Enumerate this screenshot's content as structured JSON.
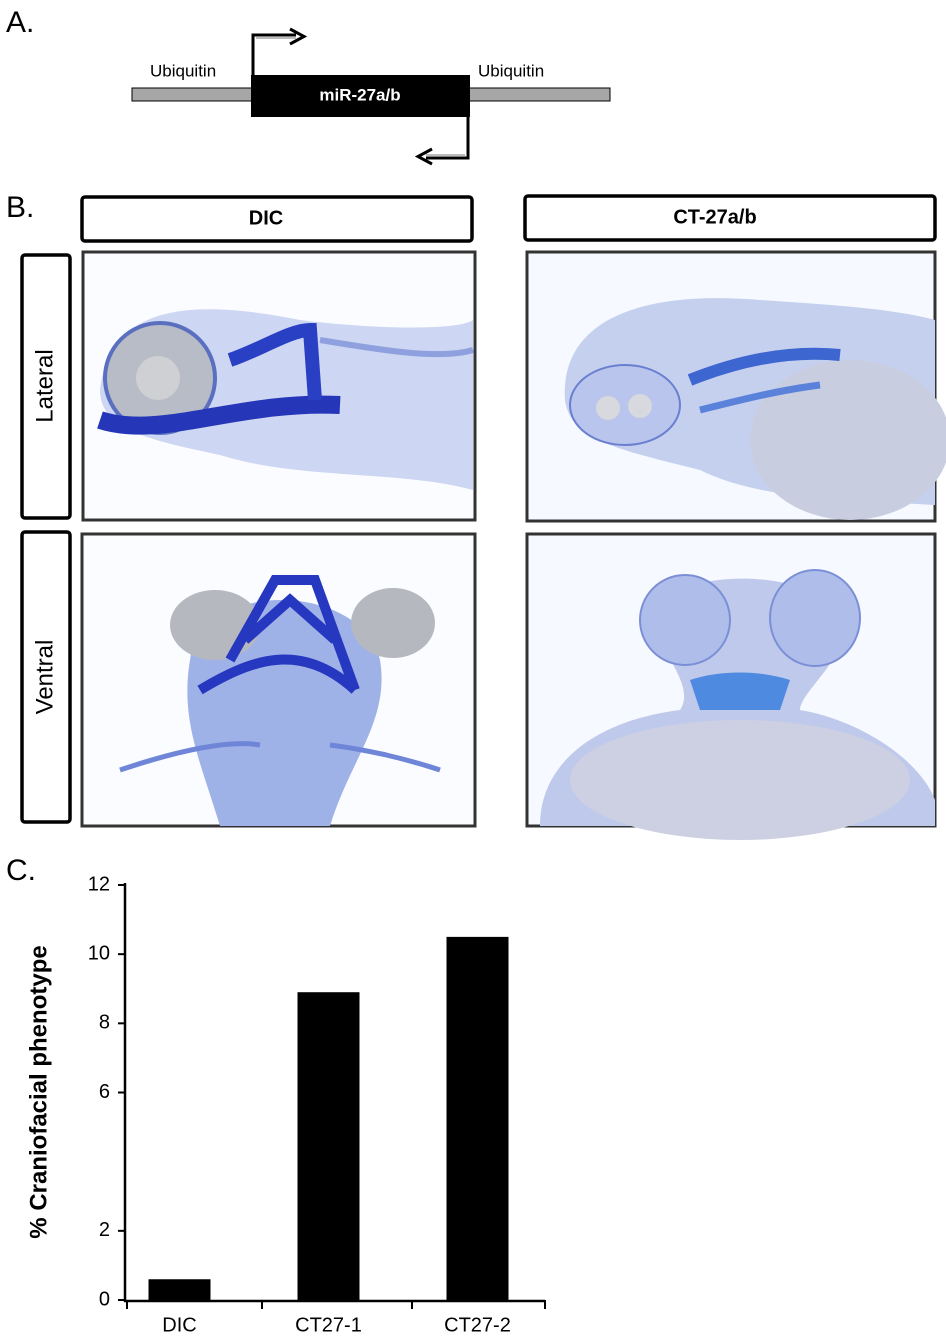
{
  "panel_a": {
    "label": "A.",
    "left_label": "Ubiquitin",
    "right_label": "Ubiquitin",
    "insert": "miR-27a/b"
  },
  "panel_b": {
    "label": "B.",
    "columns": [
      "DIC",
      "CT-27a/b"
    ],
    "rows": [
      "Lateral",
      "Ventral"
    ]
  },
  "panel_c": {
    "label": "C."
  },
  "chart_data": {
    "type": "bar",
    "y_label": "% Craniofacial phenotype",
    "categories": [
      "DIC",
      "CT27-1",
      "CT27-2"
    ],
    "values": [
      0.6,
      8.9,
      10.5
    ],
    "color": "#000000",
    "ylim": [
      0,
      12
    ],
    "yticks": [
      0,
      2,
      6,
      8,
      10,
      12
    ]
  }
}
